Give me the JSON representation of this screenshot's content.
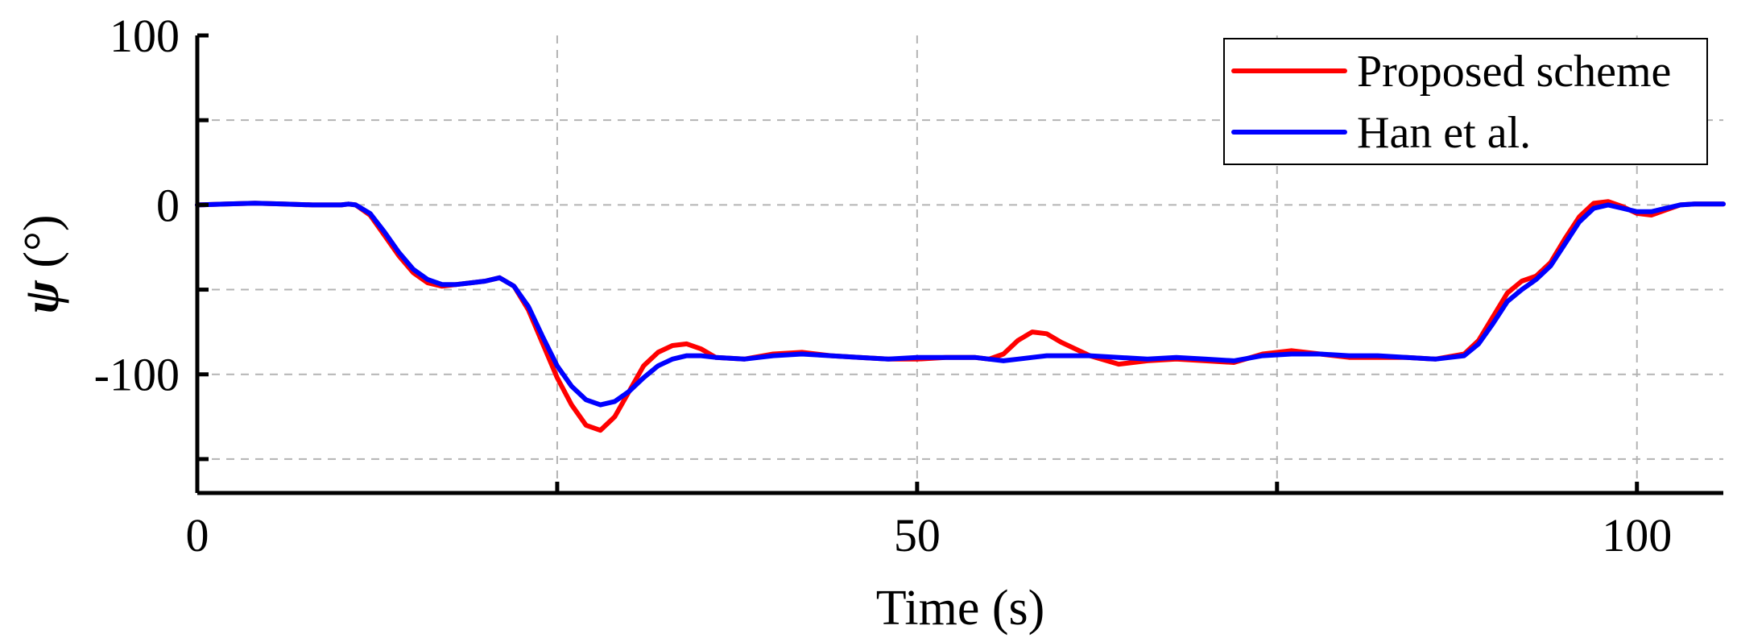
{
  "chart_data": {
    "type": "line",
    "title": "",
    "xlabel": "Time (s)",
    "ylabel_symbol": "ψ",
    "ylabel_unit": " (°)",
    "xlim": [
      0,
      106
    ],
    "ylim": [
      -170,
      100
    ],
    "x_ticks": [
      0,
      25,
      50,
      75,
      100
    ],
    "x_tick_labels": [
      "0",
      "",
      "50",
      "",
      "100"
    ],
    "y_ticks": [
      100,
      50,
      0,
      -50,
      -100,
      -150
    ],
    "y_tick_labels": [
      "100",
      "",
      "0",
      "",
      "-100",
      ""
    ],
    "grid": true,
    "legend_position": "top-right",
    "series": [
      {
        "name": "Proposed scheme",
        "color": "#ff0000",
        "x": [
          0,
          2,
          4,
          6,
          8,
          10,
          10.5,
          11,
          12,
          13,
          14,
          15,
          16,
          17,
          18,
          19,
          20,
          21,
          22,
          23,
          24,
          25,
          26,
          27,
          28,
          29,
          30,
          31,
          32,
          33,
          34,
          35,
          36,
          38,
          40,
          42,
          44,
          46,
          48,
          50,
          52,
          54,
          55,
          56,
          57,
          58,
          59,
          60,
          62,
          64,
          66,
          68,
          70,
          72,
          74,
          76,
          78,
          80,
          82,
          84,
          86,
          88,
          89,
          90,
          91,
          92,
          93,
          94,
          95,
          96,
          97,
          98,
          99,
          100,
          101,
          102,
          103,
          104,
          106
        ],
        "y": [
          0,
          0.5,
          1,
          0.5,
          0,
          0,
          0.5,
          0,
          -6,
          -18,
          -30,
          -40,
          -46,
          -48,
          -47,
          -46,
          -45,
          -43,
          -48,
          -62,
          -82,
          -102,
          -118,
          -130,
          -133,
          -125,
          -110,
          -95,
          -87,
          -83,
          -82,
          -85,
          -90,
          -91,
          -88,
          -87,
          -89,
          -90,
          -91,
          -91,
          -90,
          -90,
          -91,
          -88,
          -80,
          -75,
          -76,
          -81,
          -89,
          -94,
          -92,
          -91,
          -92,
          -93,
          -88,
          -86,
          -88,
          -90,
          -90,
          -90,
          -91,
          -88,
          -80,
          -66,
          -52,
          -45,
          -42,
          -34,
          -20,
          -7,
          1,
          2,
          -1,
          -5,
          -6,
          -3,
          0,
          0.5,
          0.5
        ]
      },
      {
        "name": "Han et al.",
        "color": "#0000ff",
        "x": [
          0,
          2,
          4,
          6,
          8,
          10,
          10.5,
          11,
          12,
          13,
          14,
          15,
          16,
          17,
          18,
          19,
          20,
          21,
          22,
          23,
          24,
          25,
          26,
          27,
          28,
          29,
          30,
          31,
          32,
          33,
          34,
          35,
          36,
          38,
          40,
          42,
          44,
          46,
          48,
          50,
          52,
          54,
          55,
          56,
          57,
          58,
          59,
          60,
          62,
          64,
          66,
          68,
          70,
          72,
          74,
          76,
          78,
          80,
          82,
          84,
          86,
          88,
          89,
          90,
          91,
          92,
          93,
          94,
          95,
          96,
          97,
          98,
          99,
          100,
          101,
          102,
          103,
          104,
          106
        ],
        "y": [
          0,
          0.5,
          1,
          0.5,
          0,
          0,
          0.5,
          0,
          -5,
          -16,
          -28,
          -38,
          -44,
          -47,
          -47,
          -46,
          -45,
          -43,
          -48,
          -60,
          -78,
          -95,
          -107,
          -115,
          -118,
          -116,
          -110,
          -102,
          -95,
          -91,
          -89,
          -89,
          -90,
          -91,
          -89,
          -88,
          -89,
          -90,
          -91,
          -90,
          -90,
          -90,
          -91,
          -92,
          -91,
          -90,
          -89,
          -89,
          -89,
          -90,
          -91,
          -90,
          -91,
          -92,
          -89,
          -88,
          -88,
          -89,
          -89,
          -90,
          -91,
          -89,
          -82,
          -70,
          -57,
          -50,
          -44,
          -36,
          -23,
          -10,
          -2,
          0,
          -2,
          -4,
          -4,
          -2,
          0,
          0.5,
          0.5
        ]
      }
    ]
  }
}
